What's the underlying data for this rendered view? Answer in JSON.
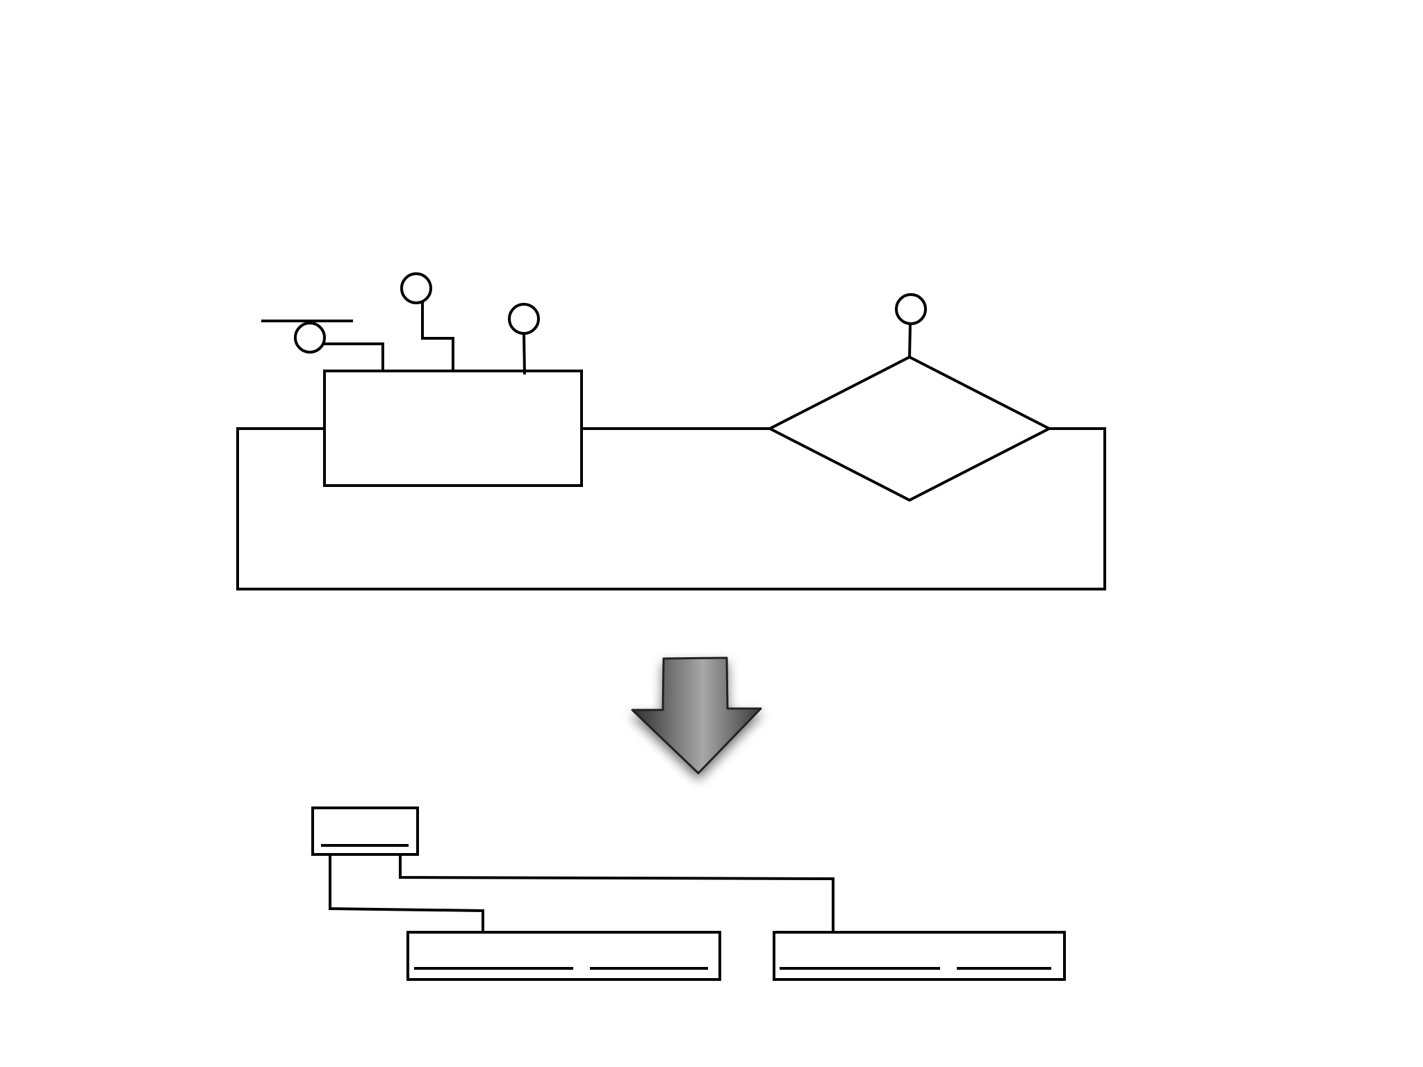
{
  "diagram": {
    "type": "flowchart-to-tree-transformation",
    "colors": {
      "stroke": "#000000",
      "background": "#ffffff",
      "arrow_dark": "#3a3a3a",
      "arrow_light": "#a8a8a8"
    },
    "icons": [
      "down-arrow-icon"
    ],
    "flowchart": {
      "process_node": "rectangle",
      "decision_node": "diamond",
      "loop": true,
      "connectors": 4
    },
    "tree": {
      "root": "small-box",
      "children": 2
    },
    "labels_shown": false
  }
}
